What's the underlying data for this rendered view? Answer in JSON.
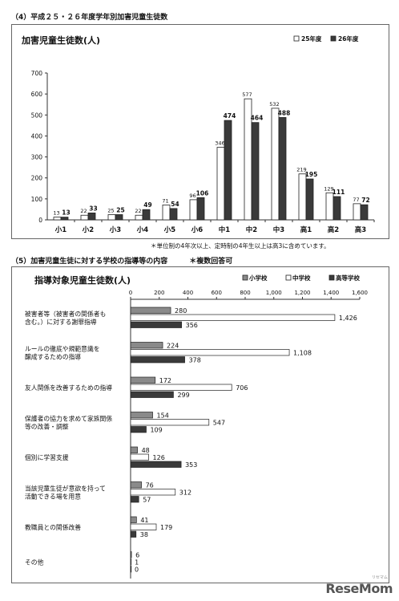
{
  "section4": {
    "heading": "（4）平成２５・２６年度学年別加害児童生徒数",
    "note": "＊単位制の4年次以上、定時制の4年生以上は高3に含めています。"
  },
  "section5": {
    "heading": "（5）加害児童生徒に対する学校の指導等の内容　　　＊複数回答可"
  },
  "logo": {
    "text": "ReseMom",
    "sub": "リセマム"
  },
  "colors": {
    "dark": "#3a3a3a",
    "gray": "#8a8a8a",
    "white": "#ffffff",
    "stroke": "#222222"
  },
  "chart_data": [
    {
      "type": "bar",
      "title": "加害児童生徒数(人)",
      "categories": [
        "小1",
        "小2",
        "小3",
        "小4",
        "小5",
        "小6",
        "中1",
        "中2",
        "中3",
        "高1",
        "高2",
        "高3"
      ],
      "series": [
        {
          "name": "25年度",
          "values": [
            13,
            22,
            25,
            22,
            71,
            96,
            346,
            577,
            532,
            219,
            129,
            77
          ]
        },
        {
          "name": "26年度",
          "values": [
            13,
            33,
            25,
            49,
            54,
            106,
            474,
            464,
            488,
            195,
            111,
            72
          ]
        }
      ],
      "yticks": [
        0,
        100,
        200,
        300,
        400,
        500,
        600,
        700
      ],
      "ylim": [
        0,
        700
      ],
      "legend": "top-right",
      "grid": false
    },
    {
      "type": "bar",
      "orientation": "horizontal",
      "title": "指導対象児童生徒数(人)",
      "categories": [
        [
          "被害者等（被害者の関係者も",
          "含む。）に対する謝罪指導"
        ],
        [
          "ルールの徹底や規範意識を",
          "醸成するための指導"
        ],
        [
          "友人関係を改善するための指導"
        ],
        [
          "保護者の協力を求めて家族関係",
          "等の改善・調整"
        ],
        [
          "個別に学習支援"
        ],
        [
          "当該児童生徒が意欲を持って",
          "活動できる場を用意"
        ],
        [
          "教職員との関係改善"
        ],
        [
          "その他"
        ]
      ],
      "series": [
        {
          "name": "小学校",
          "values": [
            280,
            224,
            172,
            154,
            48,
            76,
            41,
            6
          ]
        },
        {
          "name": "中学校",
          "values": [
            1426,
            1108,
            706,
            547,
            126,
            312,
            179,
            1
          ]
        },
        {
          "name": "高等学校",
          "values": [
            356,
            378,
            299,
            109,
            353,
            57,
            38,
            0
          ]
        }
      ],
      "xticks": [
        "0",
        "200",
        "400",
        "600",
        "800",
        "1,000",
        "1,200",
        "1,400",
        "1,600"
      ],
      "xlim": [
        0,
        1600
      ],
      "legend": "top-right",
      "grid": false
    }
  ]
}
